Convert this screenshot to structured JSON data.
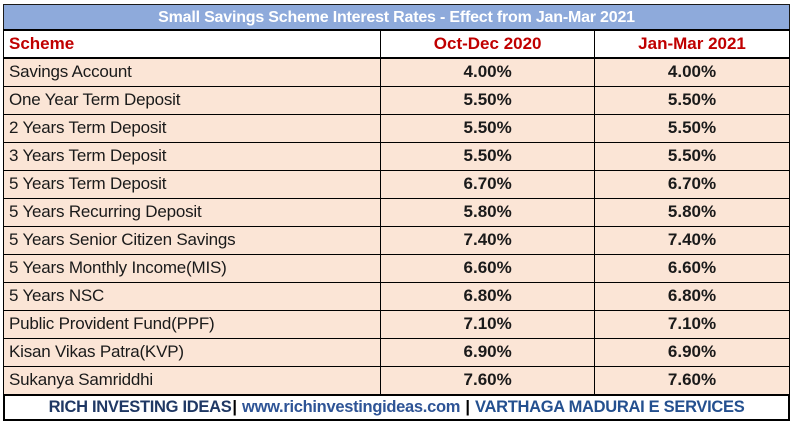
{
  "chart_data": {
    "type": "table",
    "title": "Small Savings Scheme Interest Rates - Effect from Jan-Mar 2021",
    "columns": [
      "Scheme",
      "Oct-Dec 2020",
      "Jan-Mar 2021"
    ],
    "rows": [
      [
        "Savings Account",
        "4.00%",
        "4.00%"
      ],
      [
        "One Year Term Deposit",
        "5.50%",
        "5.50%"
      ],
      [
        "2 Years Term Deposit",
        "5.50%",
        "5.50%"
      ],
      [
        "3 Years Term Deposit",
        "5.50%",
        "5.50%"
      ],
      [
        "5 Years Term Deposit",
        "6.70%",
        "6.70%"
      ],
      [
        "5 Years Recurring Deposit",
        "5.80%",
        "5.80%"
      ],
      [
        "5 Years Senior Citizen Savings",
        "7.40%",
        "7.40%"
      ],
      [
        "5 Years Monthly Income(MIS)",
        "6.60%",
        "6.60%"
      ],
      [
        "5 Years NSC",
        "6.80%",
        "6.80%"
      ],
      [
        "Public Provident Fund(PPF)",
        "7.10%",
        "7.10%"
      ],
      [
        "Kisan Vikas Patra(KVP)",
        "6.90%",
        "6.90%"
      ],
      [
        "Sukanya Samriddhi",
        "7.60%",
        "7.60%"
      ]
    ]
  },
  "footer": {
    "brand": "RICH INVESTING IDEAS",
    "separator1": "|",
    "website": "www.richinvestingideas.com",
    "separator2": "|",
    "partner": "VARTHAGA MADURAI E SERVICES"
  },
  "colors": {
    "title_bg": "#8EAADB",
    "title_text": "#FFFFFF",
    "header_text": "#C00000",
    "row_bg": "#FBE5D6",
    "border": "#000000",
    "footer_brand": "#1F3864",
    "footer_website": "#2E5496",
    "footer_partner": "#24508F"
  }
}
